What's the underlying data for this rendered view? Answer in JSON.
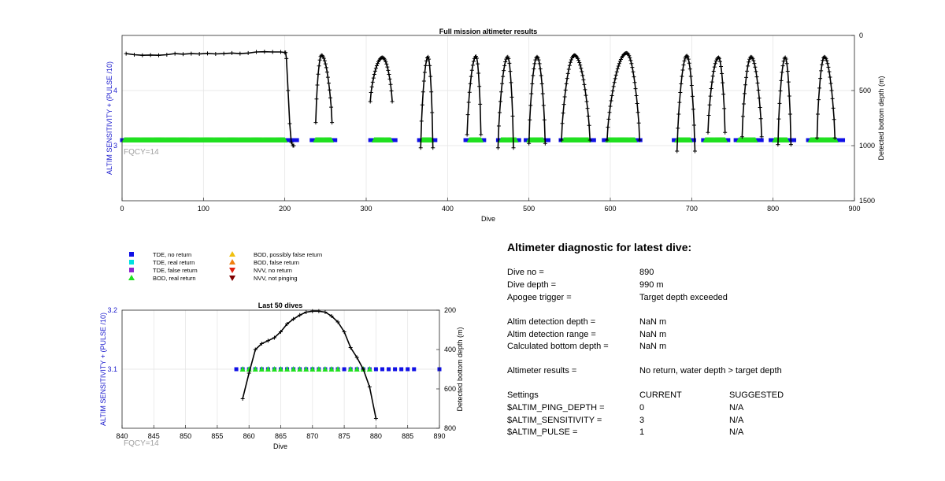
{
  "chart_data": [
    {
      "type": "scatter",
      "title": "Full mission altimeter results",
      "xlabel": "Dive",
      "ylabel": "ALTIM SENSITIVITY + (PULSE /10)",
      "y2label": "Detected bottom depth (m)",
      "xlim": [
        0,
        900
      ],
      "ylim": [
        2,
        5
      ],
      "y2lim": [
        0,
        1500
      ],
      "y2_reversed": true,
      "xticks": [
        "0",
        "100",
        "200",
        "300",
        "400",
        "500",
        "600",
        "700",
        "800",
        "900"
      ],
      "yticks": [
        "3",
        "4"
      ],
      "y2ticks": [
        "0",
        "500",
        "1000",
        "1500"
      ],
      "grid": true,
      "annotation": "FQCY=14",
      "tde_no_return_runs": [
        [
          0,
          215
        ],
        [
          233,
          262
        ],
        [
          305,
          336
        ],
        [
          365,
          385
        ],
        [
          422,
          445
        ],
        [
          462,
          488
        ],
        [
          496,
          524
        ],
        [
          539,
          580
        ],
        [
          592,
          637
        ],
        [
          678,
          703
        ],
        [
          714,
          745
        ],
        [
          754,
          786
        ],
        [
          797,
          826
        ],
        [
          843,
          886
        ]
      ],
      "bod_real_return_runs": [
        [
          3,
          200
        ],
        [
          238,
          257
        ],
        [
          310,
          330
        ],
        [
          369,
          380
        ],
        [
          427,
          441
        ],
        [
          466,
          484
        ],
        [
          500,
          517
        ],
        [
          543,
          573
        ],
        [
          597,
          630
        ],
        [
          682,
          698
        ],
        [
          717,
          741
        ],
        [
          758,
          778
        ],
        [
          802,
          817
        ],
        [
          846,
          877
        ]
      ],
      "bottom_depth_flat": [
        [
          5,
          165
        ],
        [
          15,
          175
        ],
        [
          25,
          180
        ],
        [
          35,
          178
        ],
        [
          45,
          180
        ],
        [
          55,
          175
        ],
        [
          65,
          165
        ],
        [
          75,
          170
        ],
        [
          85,
          165
        ],
        [
          95,
          168
        ],
        [
          105,
          163
        ],
        [
          115,
          168
        ],
        [
          125,
          165
        ],
        [
          135,
          160
        ],
        [
          145,
          165
        ],
        [
          155,
          160
        ],
        [
          165,
          150
        ],
        [
          175,
          148
        ],
        [
          185,
          150
        ],
        [
          195,
          150
        ],
        [
          200,
          155
        ]
      ],
      "bottom_depth_drop": [
        [
          201,
          155
        ],
        [
          202,
          210
        ],
        [
          204,
          500
        ],
        [
          206,
          800
        ],
        [
          208,
          970
        ],
        [
          210,
          1000
        ],
        [
          211,
          1000
        ]
      ],
      "bottom_depth_arcs": [
        {
          "start": 238,
          "end": 258,
          "peak": 245,
          "top": 180,
          "bottom": 790
        },
        {
          "start": 305,
          "end": 332,
          "peak": 320,
          "top": 200,
          "bottom": 600
        },
        {
          "start": 367,
          "end": 382,
          "peak": 376,
          "top": 195,
          "bottom": 1020
        },
        {
          "start": 424,
          "end": 441,
          "peak": 435,
          "top": 190,
          "bottom": 900
        },
        {
          "start": 462,
          "end": 481,
          "peak": 474,
          "top": 195,
          "bottom": 1020
        },
        {
          "start": 500,
          "end": 520,
          "peak": 510,
          "top": 195,
          "bottom": 980
        },
        {
          "start": 540,
          "end": 575,
          "peak": 556,
          "top": 180,
          "bottom": 950
        },
        {
          "start": 596,
          "end": 636,
          "peak": 620,
          "top": 160,
          "bottom": 950
        },
        {
          "start": 682,
          "end": 704,
          "peak": 694,
          "top": 185,
          "bottom": 1050
        },
        {
          "start": 720,
          "end": 741,
          "peak": 733,
          "top": 200,
          "bottom": 880
        },
        {
          "start": 762,
          "end": 786,
          "peak": 773,
          "top": 195,
          "bottom": 920
        },
        {
          "start": 806,
          "end": 822,
          "peak": 815,
          "top": 200,
          "bottom": 990
        },
        {
          "start": 854,
          "end": 876,
          "peak": 863,
          "top": 195,
          "bottom": 930
        }
      ]
    },
    {
      "type": "scatter",
      "title": "Last 50 dives",
      "xlabel": "Dive",
      "ylabel": "ALTIM SENSITIVITY + (PULSE /10)",
      "y2label": "Detected bottom depth (m)",
      "xlim": [
        840,
        890
      ],
      "ylim": [
        3,
        3.2
      ],
      "y2lim": [
        200,
        800
      ],
      "y2_reversed": true,
      "xticks": [
        "840",
        "845",
        "850",
        "855",
        "860",
        "865",
        "870",
        "875",
        "880",
        "885",
        "890"
      ],
      "yticks": [
        "3.1",
        "3.2"
      ],
      "y2ticks": [
        "200",
        "400",
        "600",
        "800"
      ],
      "grid": true,
      "annotation": "FQCY=14",
      "tde_no_return_x": [
        858,
        859,
        860,
        861,
        862,
        863,
        864,
        865,
        866,
        867,
        868,
        869,
        870,
        871,
        872,
        873,
        874,
        875,
        876,
        877,
        878,
        879,
        880,
        881,
        882,
        883,
        884,
        885,
        886,
        890
      ],
      "bod_real_return_x": [
        859,
        860,
        861,
        862,
        863,
        864,
        865,
        866,
        867,
        868,
        869,
        870,
        871,
        872,
        873,
        874,
        876,
        877,
        878,
        879
      ],
      "tde_y": 3.1,
      "bottom_depth_x": [
        859,
        860,
        861,
        862,
        863,
        864,
        865,
        866,
        867,
        868,
        869,
        870,
        871,
        872,
        873,
        874,
        875,
        876,
        877,
        878,
        879,
        880
      ],
      "bottom_depth_y": [
        650,
        520,
        400,
        370,
        355,
        340,
        310,
        270,
        245,
        225,
        210,
        205,
        205,
        210,
        230,
        260,
        310,
        390,
        440,
        500,
        590,
        750
      ]
    }
  ],
  "legend": {
    "items": [
      {
        "label": "TDE, no return",
        "color": "#1010e6",
        "marker": "square"
      },
      {
        "label": "TDE, real return",
        "color": "#00e0e0",
        "marker": "square"
      },
      {
        "label": "TDE, false return",
        "color": "#8e25d0",
        "marker": "square"
      },
      {
        "label": "BOD, real return",
        "color": "#20e020",
        "marker": "triangle-up"
      },
      {
        "label": "BOD, possibly false return",
        "color": "#f0c010",
        "marker": "triangle-up"
      },
      {
        "label": "BOD, false return",
        "color": "#f08010",
        "marker": "triangle-up"
      },
      {
        "label": "NVV, no return",
        "color": "#e02010",
        "marker": "triangle-down"
      },
      {
        "label": "NVV, not pinging",
        "color": "#800000",
        "marker": "triangle-down"
      }
    ]
  },
  "diagnostic": {
    "title": "Altimeter diagnostic for latest dive:",
    "rows": [
      {
        "label": "Dive no =",
        "value": "890"
      },
      {
        "label": "Dive depth =",
        "value": "990 m"
      },
      {
        "label": "Apogee trigger =",
        "value": "Target depth exceeded"
      },
      {
        "label": "Altim detection depth =",
        "value": "NaN m"
      },
      {
        "label": "Altim detection range =",
        "value": "NaN m"
      },
      {
        "label": "Calculated bottom depth =",
        "value": "NaN m"
      },
      {
        "label": "Altimeter results =",
        "value": "No return, water depth > target depth"
      }
    ],
    "settings_header": {
      "label": "Settings",
      "current": "CURRENT",
      "suggested": "SUGGESTED"
    },
    "settings": [
      {
        "label": "$ALTIM_PING_DEPTH =",
        "current": "0",
        "suggested": "N/A"
      },
      {
        "label": "$ALTIM_SENSITIVITY =",
        "current": "3",
        "suggested": "N/A"
      },
      {
        "label": "$ALTIM_PULSE =",
        "current": "1",
        "suggested": "N/A"
      }
    ]
  },
  "colors": {
    "axis_blue": "#1a1acd",
    "grid": "#e3e3e3",
    "fqcy": "#a0a0a0",
    "line": "#000000"
  }
}
